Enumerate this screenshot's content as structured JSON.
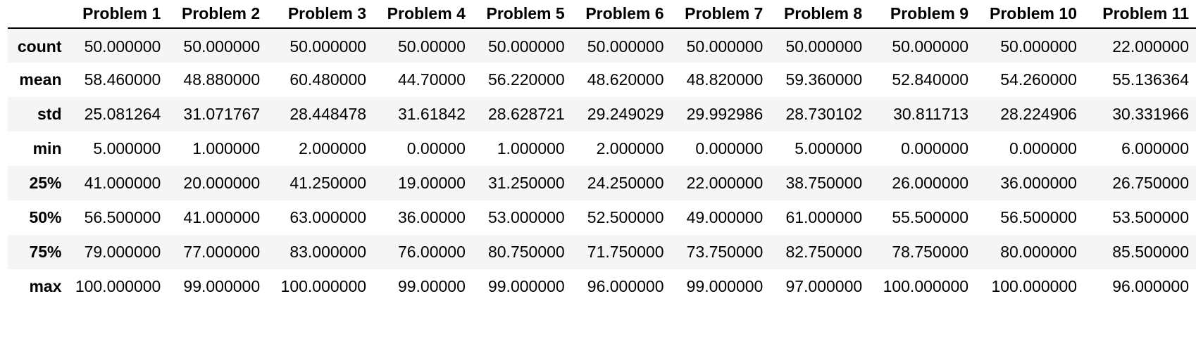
{
  "table": {
    "index_header": "",
    "columns": [
      "Problem 1",
      "Problem 2",
      "Problem 3",
      "Problem 4",
      "Problem 5",
      "Problem 6",
      "Problem 7",
      "Problem 8",
      "Problem 9",
      "Problem 10",
      "Problem 11"
    ],
    "rows": [
      {
        "label": "count",
        "values": [
          "50.000000",
          "50.000000",
          "50.000000",
          "50.00000",
          "50.000000",
          "50.000000",
          "50.000000",
          "50.000000",
          "50.000000",
          "50.000000",
          "22.000000"
        ]
      },
      {
        "label": "mean",
        "values": [
          "58.460000",
          "48.880000",
          "60.480000",
          "44.70000",
          "56.220000",
          "48.620000",
          "48.820000",
          "59.360000",
          "52.840000",
          "54.260000",
          "55.136364"
        ]
      },
      {
        "label": "std",
        "values": [
          "25.081264",
          "31.071767",
          "28.448478",
          "31.61842",
          "28.628721",
          "29.249029",
          "29.992986",
          "28.730102",
          "30.811713",
          "28.224906",
          "30.331966"
        ]
      },
      {
        "label": "min",
        "values": [
          "5.000000",
          "1.000000",
          "2.000000",
          "0.00000",
          "1.000000",
          "2.000000",
          "0.000000",
          "5.000000",
          "0.000000",
          "0.000000",
          "6.000000"
        ]
      },
      {
        "label": "25%",
        "values": [
          "41.000000",
          "20.000000",
          "41.250000",
          "19.00000",
          "31.250000",
          "24.250000",
          "22.000000",
          "38.750000",
          "26.000000",
          "36.000000",
          "26.750000"
        ]
      },
      {
        "label": "50%",
        "values": [
          "56.500000",
          "41.000000",
          "63.000000",
          "36.00000",
          "53.000000",
          "52.500000",
          "49.000000",
          "61.000000",
          "55.500000",
          "56.500000",
          "53.500000"
        ]
      },
      {
        "label": "75%",
        "values": [
          "79.000000",
          "77.000000",
          "83.000000",
          "76.00000",
          "80.750000",
          "71.750000",
          "73.750000",
          "82.750000",
          "78.750000",
          "80.000000",
          "85.500000"
        ]
      },
      {
        "label": "max",
        "values": [
          "100.000000",
          "99.000000",
          "100.000000",
          "99.00000",
          "99.000000",
          "96.000000",
          "99.000000",
          "97.000000",
          "100.000000",
          "100.000000",
          "96.000000"
        ]
      }
    ]
  }
}
